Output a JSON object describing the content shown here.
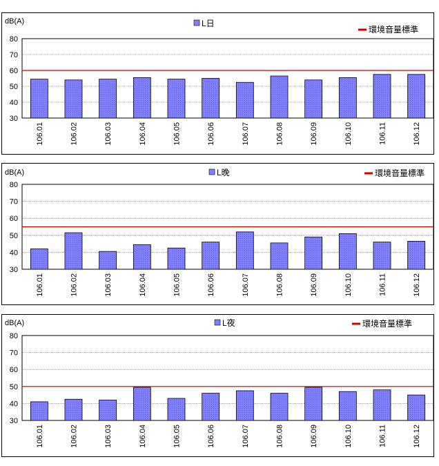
{
  "chart_data": [
    {
      "type": "bar",
      "ylabel": "dB(A)",
      "ylim": [
        30,
        80
      ],
      "yticks": [
        30,
        40,
        50,
        60,
        70,
        80
      ],
      "categories": [
        "106.01",
        "106.02",
        "106.03",
        "106.04",
        "106.05",
        "106.06",
        "106.07",
        "106.08",
        "106.09",
        "106.10",
        "106.11",
        "106.12"
      ],
      "series": [
        {
          "name": "L日",
          "values": [
            54.5,
            54,
            54.5,
            55.5,
            54.5,
            55,
            52.5,
            56.5,
            54,
            55.5,
            57.5,
            57.5
          ]
        }
      ],
      "reference_line": {
        "name": "環境音量標準",
        "value": 60
      },
      "grid": true,
      "legend": "top"
    },
    {
      "type": "bar",
      "ylabel": "dB(A)",
      "ylim": [
        30,
        80
      ],
      "yticks": [
        30,
        40,
        50,
        60,
        70,
        80
      ],
      "categories": [
        "106.01",
        "106.02",
        "106.03",
        "106.04",
        "106.05",
        "106.06",
        "106.07",
        "106.08",
        "106.09",
        "106.10",
        "106.11",
        "106.12"
      ],
      "series": [
        {
          "name": "L晚",
          "values": [
            42,
            51.5,
            40.5,
            44.5,
            42.5,
            46,
            52,
            45.5,
            49,
            51,
            46,
            46.5
          ]
        }
      ],
      "reference_line": {
        "name": "環境音量標準",
        "value": 55
      },
      "grid": true,
      "legend": "top"
    },
    {
      "type": "bar",
      "ylabel": "dB(A)",
      "ylim": [
        30,
        80
      ],
      "yticks": [
        30,
        40,
        50,
        60,
        70,
        80
      ],
      "categories": [
        "106.01",
        "106.02",
        "106.03",
        "106.04",
        "106.05",
        "106.06",
        "106.07",
        "106.08",
        "106.09",
        "106.10",
        "106.11",
        "106.12"
      ],
      "series": [
        {
          "name": "L夜",
          "values": [
            41,
            42.5,
            42,
            49.5,
            43,
            46,
            47.5,
            46,
            49.5,
            47,
            48,
            45
          ]
        }
      ],
      "reference_line": {
        "name": "環境音量標準",
        "value": 50
      },
      "grid": true,
      "legend": "top"
    }
  ],
  "colors": {
    "bar_fill": "#8080ff",
    "bar_hatch": "#6060e0",
    "bar_stroke": "#000000",
    "reference_line": "#cc0000",
    "grid": "#808080"
  }
}
